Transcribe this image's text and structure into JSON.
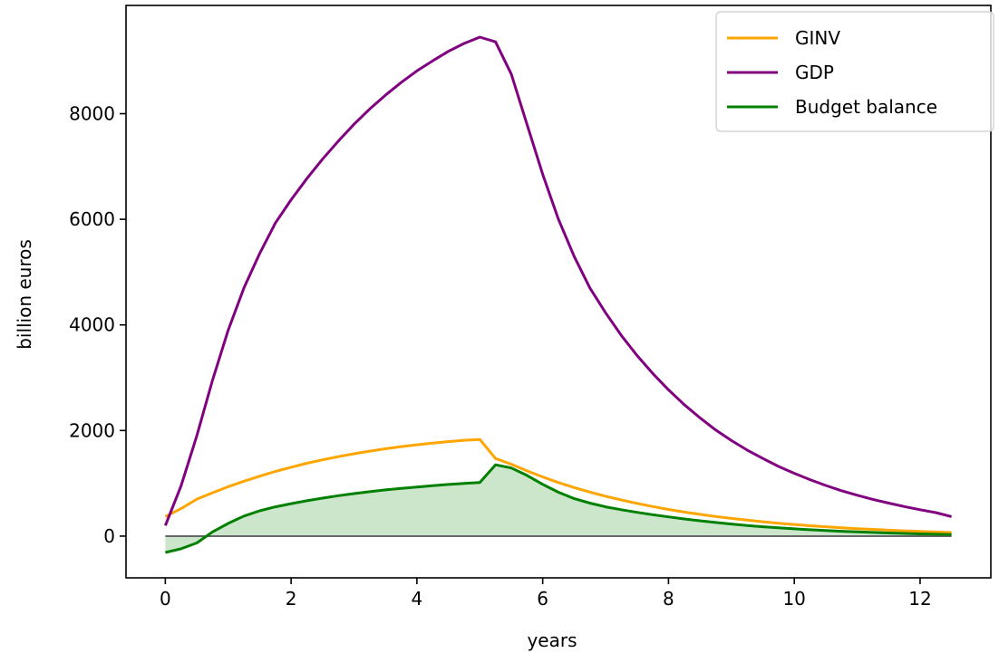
{
  "chart_data": {
    "type": "line",
    "xlabel": "years",
    "ylabel": "billion euros",
    "xlim": [
      -0.625,
      13.125
    ],
    "ylim": [
      -790,
      10050
    ],
    "xticks": [
      0,
      2,
      4,
      6,
      8,
      10,
      12
    ],
    "yticks": [
      0,
      2000,
      4000,
      6000,
      8000
    ],
    "grid": false,
    "legend_position": "top-right",
    "zero_line": true,
    "fill_series": "Budget balance",
    "x": [
      0,
      0.25,
      0.5,
      0.75,
      1,
      1.25,
      1.5,
      1.75,
      2,
      2.25,
      2.5,
      2.75,
      3,
      3.25,
      3.5,
      3.75,
      4,
      4.25,
      4.5,
      4.75,
      5,
      5.25,
      5.5,
      5.75,
      6,
      6.25,
      6.5,
      6.75,
      7,
      7.25,
      7.5,
      7.75,
      8,
      8.25,
      8.5,
      8.75,
      9,
      9.25,
      9.5,
      9.75,
      10,
      10.25,
      10.5,
      10.75,
      11,
      11.25,
      11.5,
      11.75,
      12,
      12.25,
      12.5
    ],
    "series": [
      {
        "name": "GINV",
        "color": "#ffa500",
        "values": [
          370,
          520,
          700,
          820,
          935,
          1040,
          1135,
          1225,
          1305,
          1380,
          1445,
          1505,
          1560,
          1610,
          1655,
          1695,
          1730,
          1760,
          1790,
          1815,
          1830,
          1470,
          1360,
          1235,
          1120,
          1015,
          920,
          835,
          755,
          685,
          620,
          560,
          505,
          455,
          412,
          372,
          335,
          302,
          272,
          245,
          220,
          197,
          177,
          158,
          142,
          127,
          113,
          100,
          88,
          78,
          68
        ]
      },
      {
        "name": "GDP",
        "color": "#800080",
        "values": [
          200,
          950,
          1900,
          2950,
          3900,
          4700,
          5350,
          5930,
          6370,
          6770,
          7140,
          7480,
          7800,
          8090,
          8350,
          8590,
          8810,
          9000,
          9180,
          9330,
          9450,
          9360,
          8750,
          7800,
          6850,
          6000,
          5300,
          4700,
          4230,
          3800,
          3420,
          3080,
          2770,
          2490,
          2240,
          2010,
          1810,
          1630,
          1470,
          1320,
          1190,
          1070,
          960,
          860,
          775,
          695,
          625,
          560,
          500,
          445,
          370
        ]
      },
      {
        "name": "Budget balance",
        "color": "#008000",
        "values": [
          -310,
          -240,
          -130,
          80,
          240,
          380,
          480,
          555,
          615,
          670,
          720,
          765,
          805,
          842,
          875,
          905,
          930,
          955,
          978,
          998,
          1015,
          1350,
          1290,
          1150,
          980,
          830,
          710,
          625,
          555,
          500,
          450,
          405,
          365,
          325,
          290,
          258,
          228,
          202,
          178,
          157,
          138,
          120,
          105,
          92,
          80,
          69,
          59,
          50,
          42,
          35,
          28
        ]
      }
    ]
  }
}
